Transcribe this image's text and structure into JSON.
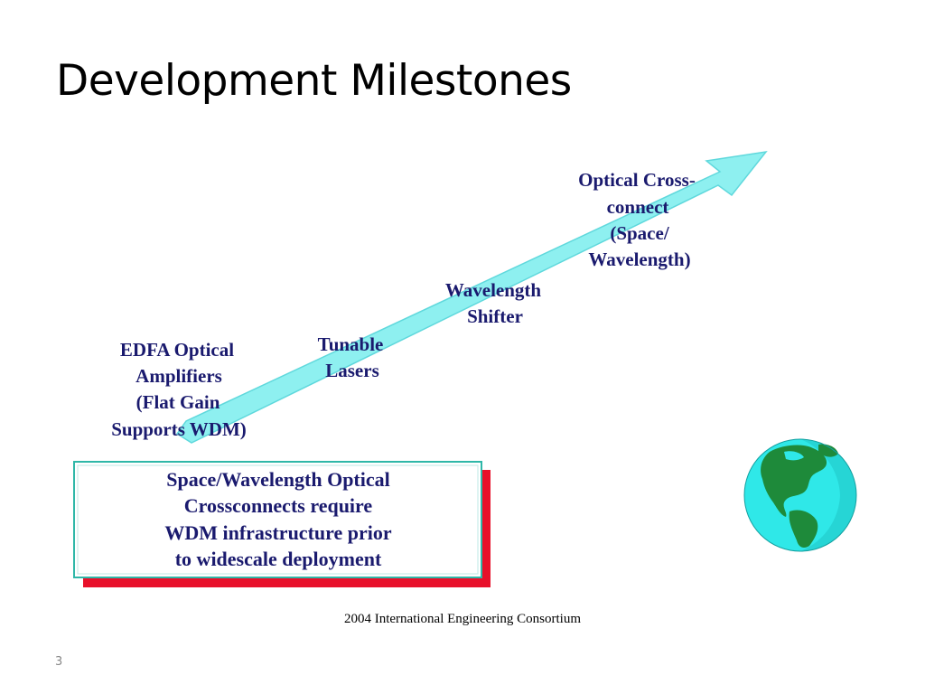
{
  "slide": {
    "title": "Development Milestones",
    "footer": "2004 International Engineering Consortium",
    "page_number": "3"
  },
  "milestones": [
    {
      "lines": [
        "EDFA Optical",
        "Amplifiers",
        "(Flat Gain",
        "Supports WDM)"
      ]
    },
    {
      "lines": [
        "Tunable",
        "Lasers"
      ]
    },
    {
      "lines": [
        "Wavelength",
        "Shifter"
      ]
    },
    {
      "lines": [
        "Optical Cross-",
        "connect",
        "(Space/",
        "Wavelength)"
      ]
    }
  ],
  "note": {
    "lines": [
      "Space/Wavelength Optical",
      "Crossconnects require",
      "WDM infrastructure prior",
      "to widescale deployment"
    ]
  },
  "colors": {
    "arrow": "#8ef0f0",
    "arrow_outline": "#5fd8dc",
    "label_text": "#1a1a6e",
    "note_shadow": "#e8102a",
    "note_border": "#2fb7a8",
    "globe_ocean": "#2fe8e8",
    "globe_land": "#1e8a3a"
  },
  "icons": {
    "globe": "globe-icon"
  }
}
